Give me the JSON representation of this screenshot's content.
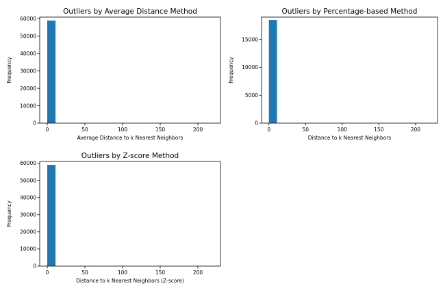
{
  "chart_data": [
    {
      "type": "bar",
      "title": "Outliers by Average Distance Method",
      "xlabel": "Average Distance to k Nearest Neighbors",
      "ylabel": "Frequency",
      "xlim": [
        -10,
        230
      ],
      "ylim": [
        0,
        61000
      ],
      "xticks": [
        0,
        50,
        100,
        150,
        200
      ],
      "yticks": [
        0,
        10000,
        20000,
        30000,
        40000,
        50000,
        60000
      ],
      "bars": [
        {
          "x0": 0,
          "x1": 11,
          "value": 59000
        }
      ],
      "color": "#1f77b4",
      "grid": false
    },
    {
      "type": "bar",
      "title": "Outliers by Percentage-based Method",
      "xlabel": "Distance to k Nearest Neighbors",
      "ylabel": "Frequency",
      "xlim": [
        -10,
        230
      ],
      "ylim": [
        0,
        19000
      ],
      "xticks": [
        0,
        50,
        100,
        150,
        200
      ],
      "yticks": [
        0,
        5000,
        10000,
        15000
      ],
      "bars": [
        {
          "x0": 0,
          "x1": 11,
          "value": 18500
        }
      ],
      "color": "#1f77b4",
      "grid": false
    },
    {
      "type": "bar",
      "title": "Outliers by Z-score Method",
      "xlabel": "Distance to k Nearest Neighbors (Z-score)",
      "ylabel": "Frequency",
      "xlim": [
        -10,
        230
      ],
      "ylim": [
        0,
        61000
      ],
      "xticks": [
        0,
        50,
        100,
        150,
        200
      ],
      "yticks": [
        0,
        10000,
        20000,
        30000,
        40000,
        50000,
        60000
      ],
      "bars": [
        {
          "x0": 0,
          "x1": 11,
          "value": 59000
        }
      ],
      "color": "#1f77b4",
      "grid": false
    }
  ]
}
